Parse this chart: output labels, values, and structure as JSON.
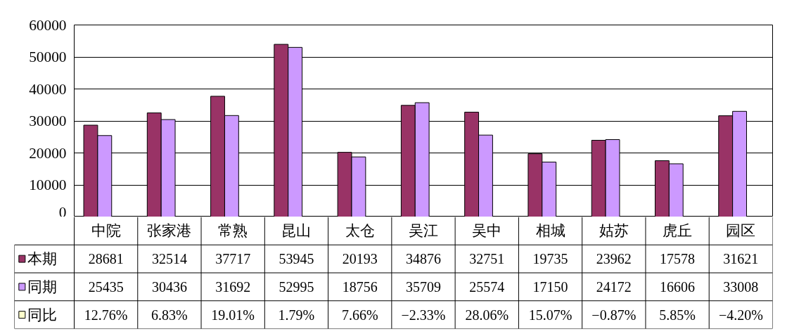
{
  "chart_data": {
    "type": "bar",
    "categories": [
      "中院",
      "张家港",
      "常熟",
      "昆山",
      "太仓",
      "吴江",
      "吴中",
      "相城",
      "姑苏",
      "虎丘",
      "园区"
    ],
    "series": [
      {
        "name": "本期",
        "color": "#993366",
        "values": [
          28681,
          32514,
          37717,
          53945,
          20193,
          34876,
          32751,
          19735,
          23962,
          17578,
          31621
        ],
        "value_labels": [
          "28681",
          "32514",
          "37717",
          "53945",
          "20193",
          "34876",
          "32751",
          "19735",
          "23962",
          "17578",
          "31621"
        ]
      },
      {
        "name": "同期",
        "color": "#cc99ff",
        "values": [
          25435,
          30436,
          31692,
          52995,
          18756,
          35709,
          25574,
          17150,
          24172,
          16606,
          33008
        ],
        "value_labels": [
          "25435",
          "30436",
          "31692",
          "52995",
          "18756",
          "35709",
          "25574",
          "17150",
          "24172",
          "16606",
          "33008"
        ]
      },
      {
        "name": "同比",
        "color": "#ffffcc",
        "values": [
          12.76,
          6.83,
          19.01,
          1.79,
          7.66,
          null,
          28.06,
          15.07,
          null,
          5.85,
          null
        ],
        "value_labels": [
          "12.76%",
          "6.83%",
          "19.01%",
          "1.79%",
          "7.66%",
          "−2.33%",
          "28.06%",
          "15.07%",
          "−0.87%",
          "5.85%",
          "−4.20%"
        ]
      }
    ],
    "ylim": [
      0,
      60000
    ],
    "yticks": [
      0,
      10000,
      20000,
      30000,
      40000,
      50000,
      60000
    ],
    "grid": "y",
    "legend": "bottom"
  }
}
